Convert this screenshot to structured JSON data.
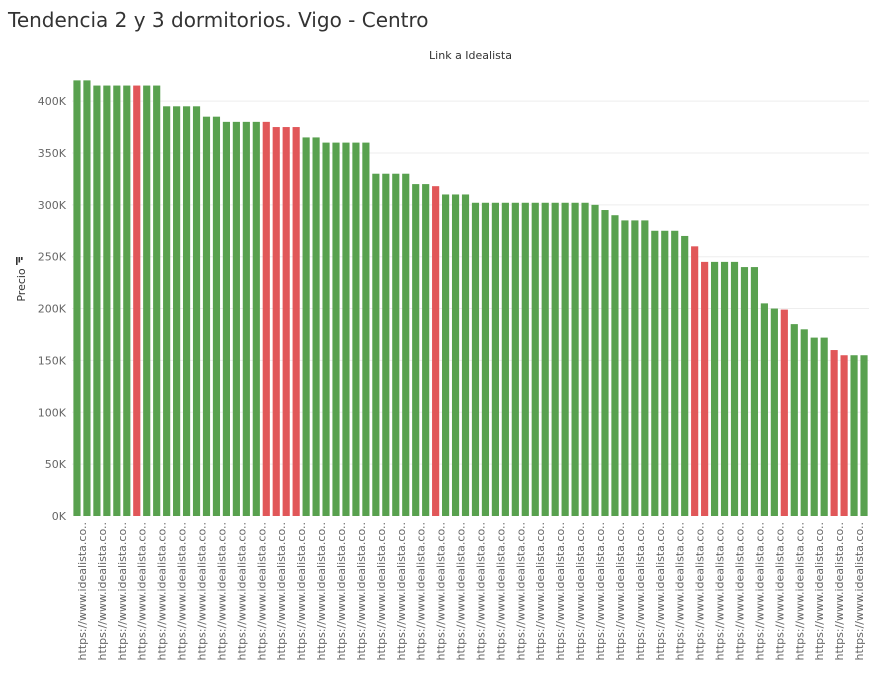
{
  "title": "Tendencia 2 y 3 dormitorios. Vigo - Centro",
  "colors": {
    "green": "#59A14F",
    "red": "#E15759"
  },
  "chart_data": {
    "type": "bar",
    "top_header": "Link a Idealista",
    "ylabel": "Precio",
    "ylim": [
      0,
      430000
    ],
    "yticks": [
      0,
      50000,
      100000,
      150000,
      200000,
      250000,
      300000,
      350000,
      400000
    ],
    "ytick_labels": [
      "0K",
      "50K",
      "100K",
      "150K",
      "200K",
      "250K",
      "300K",
      "350K",
      "400K"
    ],
    "category_label": "https://www.idealista.co..",
    "values": [
      420000,
      420000,
      415000,
      415000,
      415000,
      415000,
      415000,
      415000,
      415000,
      395000,
      395000,
      395000,
      395000,
      385000,
      385000,
      380000,
      380000,
      380000,
      380000,
      380000,
      375000,
      375000,
      375000,
      365000,
      365000,
      360000,
      360000,
      360000,
      360000,
      360000,
      330000,
      330000,
      330000,
      330000,
      320000,
      320000,
      318000,
      310000,
      310000,
      310000,
      302000,
      302000,
      302000,
      302000,
      302000,
      302000,
      302000,
      302000,
      302000,
      302000,
      302000,
      302000,
      300000,
      295000,
      290000,
      285000,
      285000,
      285000,
      275000,
      275000,
      275000,
      270000,
      260000,
      245000,
      245000,
      245000,
      245000,
      240000,
      240000,
      205000,
      200000,
      199000,
      185000,
      180000,
      172000,
      172000,
      160000,
      155000,
      155000,
      155000
    ],
    "highlight": [
      "green",
      "green",
      "green",
      "green",
      "green",
      "green",
      "red",
      "green",
      "green",
      "green",
      "green",
      "green",
      "green",
      "green",
      "green",
      "green",
      "green",
      "green",
      "green",
      "red",
      "red",
      "red",
      "red",
      "green",
      "green",
      "green",
      "green",
      "green",
      "green",
      "green",
      "green",
      "green",
      "green",
      "green",
      "green",
      "green",
      "red",
      "green",
      "green",
      "green",
      "green",
      "green",
      "green",
      "green",
      "green",
      "green",
      "green",
      "green",
      "green",
      "green",
      "green",
      "green",
      "green",
      "green",
      "green",
      "green",
      "green",
      "green",
      "green",
      "green",
      "green",
      "green",
      "red",
      "red",
      "green",
      "green",
      "green",
      "green",
      "green",
      "green",
      "green",
      "red",
      "green",
      "green",
      "green",
      "green",
      "red",
      "red",
      "green",
      "green"
    ],
    "grid": true
  }
}
